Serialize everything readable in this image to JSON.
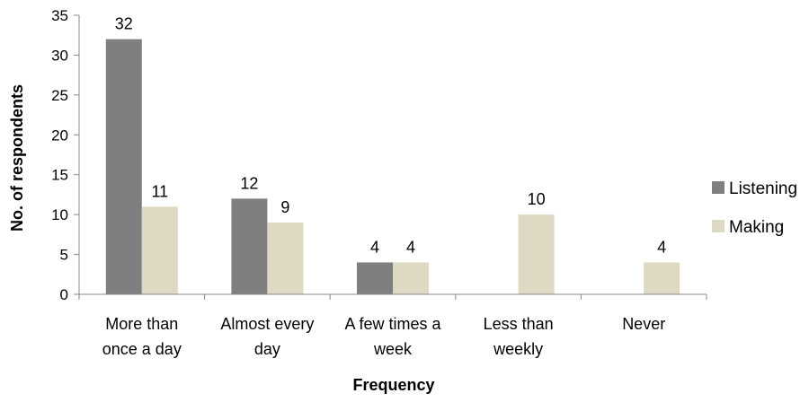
{
  "chart_data": {
    "type": "bar",
    "categories": [
      [
        "More than",
        "once a day"
      ],
      [
        "Almost every",
        "day"
      ],
      [
        "A few times a",
        "week"
      ],
      [
        "Less than",
        "weekly"
      ],
      [
        "Never"
      ]
    ],
    "series": [
      {
        "name": "Listening",
        "color": "#7f7f7f",
        "values": [
          32,
          12,
          4,
          null,
          null
        ]
      },
      {
        "name": "Making",
        "color": "#ddd9c3",
        "values": [
          11,
          9,
          4,
          10,
          4
        ]
      }
    ],
    "title": "",
    "xlabel": "Frequency",
    "ylabel": "No. of respondents",
    "ylim": [
      0,
      35
    ],
    "yticks": [
      0,
      5,
      10,
      15,
      20,
      25,
      30,
      35
    ],
    "grid": false,
    "legend": "right"
  }
}
